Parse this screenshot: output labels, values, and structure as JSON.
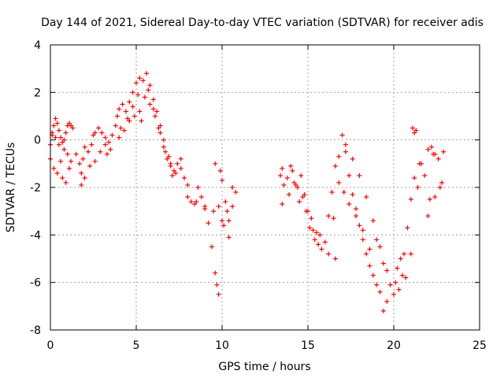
{
  "chart_data": {
    "type": "scatter",
    "title": "Day 144 of 2021, Sidereal Day-to-day VTEC variation (SDTVAR) for receiver adis",
    "xlabel": "GPS time / hours",
    "ylabel": "SDTVAR / TECUs",
    "xlim": [
      0,
      25
    ],
    "ylim": [
      -8,
      4
    ],
    "xticks": [
      0,
      5,
      10,
      15,
      20,
      25
    ],
    "yticks": [
      -8,
      -6,
      -4,
      -2,
      0,
      2,
      4
    ],
    "xtick_labels": [
      "0",
      "5",
      "10",
      "15",
      "20",
      "25"
    ],
    "ytick_labels": [
      "-8",
      "-6",
      "-4",
      "-2",
      "0",
      "2",
      "4"
    ],
    "grid": true,
    "marker": "+",
    "series": [
      {
        "name": "SDTVAR",
        "color": "#ff0000",
        "x": [
          0.0,
          0.1,
          0.2,
          0.3,
          0.4,
          0.5,
          0.6,
          0.7,
          0.8,
          0.9,
          1.0,
          1.1,
          1.2,
          1.3,
          1.5,
          1.7,
          1.8,
          1.9,
          2.0,
          2.2,
          2.4,
          2.6,
          2.8,
          3.0,
          3.2,
          3.4,
          3.6,
          3.8,
          3.9,
          4.0,
          4.2,
          4.4,
          4.6,
          4.8,
          5.0,
          5.2,
          5.4,
          5.6,
          5.8,
          6.0,
          6.2,
          6.4,
          6.6,
          6.8,
          7.0,
          7.2,
          7.4,
          7.6,
          7.8,
          8.0,
          8.2,
          8.4,
          8.6,
          8.8,
          9.0,
          9.2,
          9.4,
          9.6,
          9.7,
          9.8,
          9.9,
          10.0,
          10.2,
          10.4,
          10.6,
          10.8,
          13.4,
          13.5,
          13.6,
          13.8,
          14.0,
          14.2,
          14.4,
          14.6,
          14.8,
          15.0,
          15.2,
          15.4,
          15.6,
          15.8,
          16.0,
          16.2,
          16.4,
          16.6,
          16.8,
          17.0,
          17.2,
          17.4,
          17.6,
          17.8,
          18.0,
          18.2,
          18.4,
          18.6,
          18.8,
          19.0,
          19.2,
          19.4,
          19.6,
          19.8,
          20.0,
          20.2,
          20.4,
          20.6,
          20.8,
          21.0,
          21.2,
          21.4,
          21.6,
          21.8,
          22.0,
          22.2,
          22.4,
          22.6,
          22.8,
          0.0,
          0.2,
          0.4,
          0.6,
          0.8,
          1.0,
          1.2,
          1.8,
          2.0,
          2.3,
          2.6,
          2.9,
          3.2,
          3.5,
          4.0,
          4.3,
          4.6,
          4.9,
          5.2,
          5.5,
          5.8,
          6.1,
          6.4,
          6.7,
          7.0,
          7.3,
          7.6,
          8.0,
          8.5,
          9.0,
          9.5,
          10.0,
          10.3,
          10.6,
          13.5,
          13.9,
          14.3,
          14.7,
          15.1,
          15.5,
          16.5,
          16.8,
          17.1,
          17.4,
          17.8,
          18.2,
          18.6,
          19.0,
          19.4,
          20.3,
          20.7,
          21.0,
          21.5,
          22.0,
          22.4,
          22.7,
          0.1,
          0.3,
          0.5,
          0.7,
          0.9,
          1.1,
          2.5,
          3.3,
          4.1,
          4.5,
          4.8,
          5.1,
          5.3,
          5.7,
          6.0,
          6.3,
          6.6,
          6.9,
          7.1,
          9.6,
          9.8,
          10.1,
          10.4,
          14.1,
          14.5,
          14.9,
          15.3,
          15.7,
          16.2,
          16.6,
          17.2,
          17.6,
          18.0,
          18.4,
          18.8,
          19.2,
          19.6,
          20.1,
          20.5,
          21.1,
          21.2,
          21.3,
          22.1,
          22.3,
          22.9
        ],
        "y": [
          -0.2,
          0.2,
          0.6,
          0.9,
          0.7,
          0.4,
          0.1,
          -0.1,
          0.0,
          0.3,
          0.6,
          0.7,
          0.6,
          0.5,
          -0.6,
          -1.0,
          -1.4,
          -0.8,
          -0.3,
          -0.5,
          -0.2,
          0.3,
          0.5,
          0.3,
          0.1,
          -0.1,
          0.2,
          0.6,
          1.0,
          1.3,
          1.5,
          1.2,
          1.6,
          2.0,
          2.4,
          2.6,
          2.5,
          2.8,
          2.3,
          1.7,
          1.2,
          0.6,
          -0.3,
          -0.8,
          -1.0,
          -1.3,
          -1.0,
          -0.8,
          -1.6,
          -2.4,
          -2.6,
          -2.7,
          -2.0,
          -2.4,
          -2.9,
          -3.5,
          -4.5,
          -5.6,
          -6.1,
          -6.5,
          -1.3,
          -1.7,
          -2.6,
          -3.4,
          -2.8,
          -2.2,
          -1.5,
          -1.2,
          -1.9,
          -1.6,
          -1.1,
          -1.8,
          -2.0,
          -1.5,
          -2.3,
          -3.0,
          -3.3,
          -4.2,
          -4.4,
          -4.6,
          -4.3,
          -3.2,
          -2.2,
          -1.1,
          -0.7,
          0.2,
          -0.5,
          -1.5,
          -2.3,
          -2.9,
          -3.6,
          -4.2,
          -4.8,
          -5.3,
          -5.7,
          -6.1,
          -6.4,
          -7.2,
          -6.8,
          -6.1,
          -6.5,
          -5.4,
          -5.0,
          -4.8,
          -3.7,
          -2.5,
          -1.6,
          -2.0,
          -1.0,
          -1.5,
          -0.4,
          -0.3,
          -0.6,
          -0.8,
          -1.8,
          -0.8,
          -1.2,
          -1.4,
          -0.9,
          -0.4,
          -0.6,
          -0.9,
          -1.9,
          -1.6,
          -1.1,
          -0.9,
          -0.5,
          -0.2,
          -0.4,
          0.1,
          0.4,
          0.8,
          1.0,
          1.2,
          1.8,
          1.5,
          1.0,
          0.3,
          -0.5,
          -1.1,
          -1.4,
          -1.2,
          -1.9,
          -2.6,
          -2.8,
          -3.0,
          -3.4,
          -3.0,
          -2.0,
          -2.7,
          -2.3,
          -1.9,
          -2.4,
          -3.7,
          -3.9,
          -3.3,
          -1.8,
          -2.2,
          -2.7,
          -3.2,
          -3.8,
          -4.6,
          -4.2,
          -5.2,
          -6.3,
          -5.8,
          -4.8,
          -1.0,
          -3.2,
          -2.4,
          -2.0,
          0.3,
          0.1,
          -0.2,
          -1.6,
          -1.8,
          -1.2,
          0.2,
          -0.6,
          0.5,
          0.9,
          1.4,
          1.9,
          0.8,
          2.1,
          1.3,
          0.5,
          0.0,
          -0.7,
          -1.5,
          -1.0,
          -2.8,
          -3.6,
          -4.1,
          -1.3,
          -2.6,
          -3.0,
          -3.8,
          -4.0,
          -4.8,
          -5.0,
          -0.2,
          -0.8,
          -1.5,
          -2.4,
          -3.4,
          -4.5,
          -5.5,
          -6.0,
          -5.7,
          0.5,
          0.3,
          0.4,
          -2.5,
          -0.6,
          -0.5
        ]
      }
    ]
  }
}
